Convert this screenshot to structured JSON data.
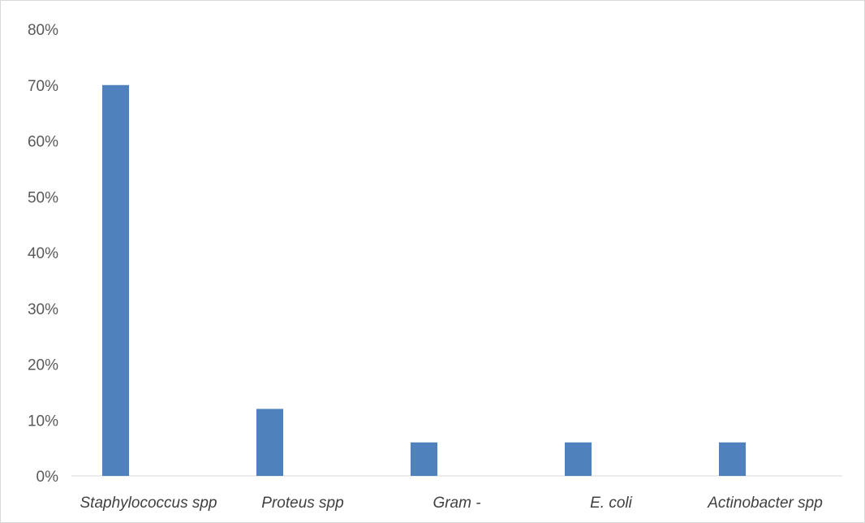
{
  "chart_data": {
    "type": "bar",
    "categories": [
      "Staphylococcus spp",
      "Proteus spp",
      "Gram -",
      "E. coli",
      "Actinobacter spp"
    ],
    "values": [
      70,
      12,
      6,
      6,
      6
    ],
    "ylim": [
      0,
      80
    ],
    "yticks": [
      "0%",
      "10%",
      "20%",
      "30%",
      "40%",
      "50%",
      "60%",
      "70%",
      "80%"
    ],
    "bar_color": "#4f81bd",
    "grid": false,
    "legend": "none"
  }
}
